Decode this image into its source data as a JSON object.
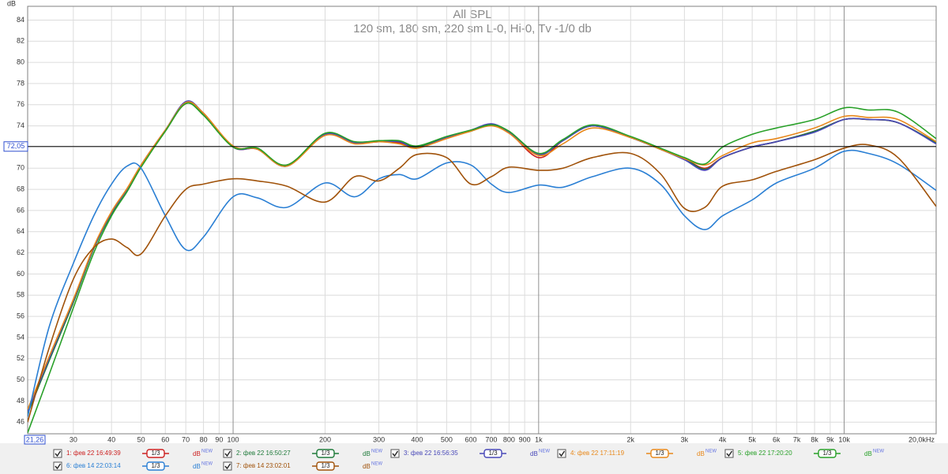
{
  "chart_data": {
    "type": "line",
    "title": "All SPL",
    "subtitle": "120 sm, 180 sm, 220 sm L-0, Hi-0, Tv -1/0 db",
    "y_label": "dB",
    "log_x": true,
    "grid": true,
    "cursor": {
      "value": 72.05,
      "label": "72,05"
    },
    "xlim": [
      21.26,
      20000
    ],
    "ylim": [
      44.9,
      85.3
    ],
    "xticks": [
      {
        "value": 21.26,
        "label": "21,26"
      },
      30,
      40,
      50,
      60,
      70,
      80,
      90,
      100,
      200,
      300,
      400,
      500,
      600,
      700,
      800,
      900,
      {
        "value": 1000,
        "label": "1k"
      },
      {
        "value": 2000,
        "label": "2k"
      },
      {
        "value": 3000,
        "label": "3k"
      },
      {
        "value": 4000,
        "label": "4k"
      },
      {
        "value": 5000,
        "label": "5k"
      },
      {
        "value": 6000,
        "label": "6k"
      },
      {
        "value": 7000,
        "label": "7k"
      },
      {
        "value": 8000,
        "label": "8k"
      },
      {
        "value": 9000,
        "label": "9k"
      },
      {
        "value": 10000,
        "label": "10k"
      },
      {
        "value": 20000,
        "label": "20,0kHz"
      }
    ],
    "yticks": [
      46,
      48,
      50,
      52,
      54,
      56,
      58,
      60,
      62,
      64,
      66,
      68,
      70,
      72,
      74,
      76,
      78,
      80,
      82,
      84
    ],
    "legend": {
      "smoothing": "1/3",
      "unit": "dB",
      "badge": "NEW"
    },
    "x": [
      21.26,
      25,
      30,
      35,
      40,
      45,
      50,
      60,
      70,
      80,
      100,
      120,
      150,
      200,
      250,
      300,
      350,
      400,
      500,
      600,
      700,
      800,
      1000,
      1200,
      1500,
      2000,
      2500,
      3000,
      3500,
      4000,
      5000,
      6000,
      8000,
      10000,
      12000,
      15000,
      20000
    ],
    "series": [
      {
        "name": "1: фев 22 16:49:39",
        "color": "#cc2020",
        "values": [
          47.0,
          52.0,
          57.5,
          62.5,
          65.8,
          68.0,
          70.3,
          73.6,
          76.1,
          75.2,
          72.0,
          71.8,
          70.3,
          73.2,
          72.4,
          72.5,
          72.4,
          71.9,
          72.9,
          73.6,
          74.1,
          73.4,
          71.0,
          72.6,
          74.0,
          72.9,
          71.8,
          70.9,
          70.0,
          71.0,
          72.0,
          72.5,
          73.5,
          74.6,
          74.6,
          74.3,
          72.4
        ]
      },
      {
        "name": "2: фев 22 16:50:27",
        "color": "#1f7a3a",
        "values": [
          46.8,
          51.8,
          57.3,
          62.4,
          65.7,
          68.0,
          70.2,
          73.5,
          76.2,
          75.1,
          72.0,
          71.9,
          70.2,
          73.3,
          72.4,
          72.6,
          72.5,
          72.0,
          72.9,
          73.5,
          74.1,
          73.4,
          71.3,
          72.6,
          74.0,
          72.9,
          71.8,
          70.9,
          69.9,
          71.0,
          72.0,
          72.5,
          73.5,
          74.6,
          74.6,
          74.3,
          72.4
        ]
      },
      {
        "name": "3: фев 22 16:56:35",
        "color": "#4848b8",
        "values": [
          47.0,
          52.0,
          57.5,
          62.5,
          65.8,
          68.0,
          70.3,
          73.6,
          76.3,
          75.2,
          72.0,
          71.8,
          70.2,
          73.2,
          72.4,
          72.5,
          72.5,
          71.9,
          72.9,
          73.6,
          74.2,
          73.4,
          71.3,
          72.6,
          74.0,
          72.9,
          71.8,
          70.8,
          69.8,
          71.0,
          72.0,
          72.5,
          73.4,
          74.6,
          74.6,
          74.3,
          72.3
        ]
      },
      {
        "name": "4: фев 22 17:11:19",
        "color": "#e8881a",
        "values": [
          47.2,
          52.2,
          57.6,
          62.6,
          65.9,
          68.1,
          70.3,
          73.6,
          76.2,
          75.2,
          72.1,
          71.8,
          70.2,
          73.1,
          72.3,
          72.5,
          72.3,
          71.9,
          72.8,
          73.5,
          74.0,
          73.3,
          71.2,
          72.3,
          73.8,
          72.9,
          71.8,
          70.9,
          70.3,
          71.2,
          72.4,
          72.8,
          73.8,
          74.9,
          74.8,
          74.6,
          72.5
        ]
      },
      {
        "name": "5: фев 22 17:20:20",
        "color": "#28a028",
        "values": [
          45.0,
          50.5,
          56.8,
          62.0,
          65.5,
          67.8,
          70.1,
          73.5,
          76.1,
          75.0,
          72.0,
          71.9,
          70.3,
          73.3,
          72.5,
          72.6,
          72.6,
          72.1,
          73.0,
          73.6,
          74.1,
          73.5,
          71.4,
          72.7,
          74.1,
          73.0,
          71.9,
          71.0,
          70.4,
          72.0,
          73.2,
          73.8,
          74.6,
          75.7,
          75.5,
          75.3,
          72.8
        ]
      },
      {
        "name": "6: фев 14 22:03:14",
        "color": "#2a7fd4",
        "values": [
          46.5,
          55.0,
          61.0,
          65.5,
          68.5,
          70.2,
          70.0,
          65.5,
          62.3,
          63.5,
          67.3,
          67.2,
          66.3,
          68.6,
          67.3,
          69.0,
          69.4,
          69.0,
          70.5,
          70.3,
          68.5,
          67.7,
          68.4,
          68.2,
          69.2,
          70.0,
          68.5,
          65.5,
          64.2,
          65.5,
          67.0,
          68.6,
          70.0,
          71.6,
          71.4,
          70.4,
          67.9
        ]
      },
      {
        "name": "7: фев 14 23:02:01",
        "color": "#a0520a",
        "values": [
          46.0,
          53.0,
          59.5,
          62.5,
          63.3,
          62.5,
          61.9,
          65.5,
          68.0,
          68.5,
          69.0,
          68.8,
          68.3,
          66.8,
          69.2,
          68.8,
          70.0,
          71.3,
          71.0,
          68.5,
          69.2,
          70.1,
          69.8,
          70.0,
          71.0,
          71.4,
          69.5,
          66.2,
          66.3,
          68.3,
          68.9,
          69.7,
          70.8,
          71.9,
          72.2,
          71.0,
          66.4
        ]
      }
    ]
  }
}
